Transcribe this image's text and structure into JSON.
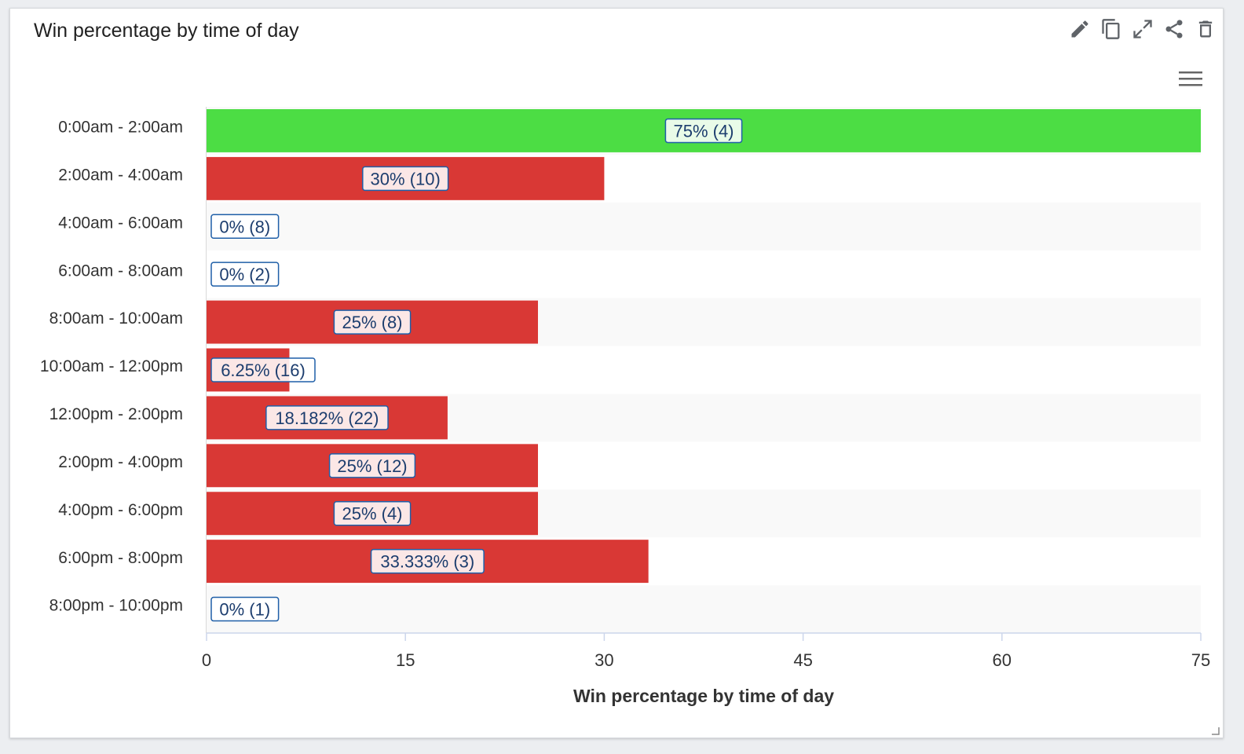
{
  "card": {
    "title": "Win percentage by time of day",
    "toolbar": [
      {
        "name": "edit-icon"
      },
      {
        "name": "copy-icon"
      },
      {
        "name": "expand-icon"
      },
      {
        "name": "share-icon"
      },
      {
        "name": "delete-icon"
      }
    ],
    "menu_icon": "hamburger-menu-icon"
  },
  "colors": {
    "win": "#4cdd44",
    "loss": "#d93835",
    "band": "#f9f9f9",
    "label_border": "#1f5fa8",
    "label_text": "#1c3d6e",
    "axis_text": "#333333"
  },
  "chart_data": {
    "type": "bar",
    "orientation": "horizontal",
    "categories": [
      "0:00am - 2:00am",
      "2:00am - 4:00am",
      "4:00am - 6:00am",
      "6:00am - 8:00am",
      "8:00am - 10:00am",
      "10:00am - 12:00pm",
      "12:00pm - 2:00pm",
      "2:00pm - 4:00pm",
      "4:00pm - 6:00pm",
      "6:00pm - 8:00pm",
      "8:00pm - 10:00pm"
    ],
    "values": [
      75,
      30,
      0,
      0,
      25,
      6.25,
      18.182,
      25,
      25,
      33.333,
      0
    ],
    "data_labels": [
      "75% (4)",
      "30% (10)",
      "0% (8)",
      "0% (2)",
      "25% (8)",
      "6.25% (16)",
      "18.182% (22)",
      "25% (12)",
      "25% (4)",
      "33.333% (3)",
      "0% (1)"
    ],
    "bar_colors": [
      "win",
      "loss",
      "loss",
      "loss",
      "loss",
      "loss",
      "loss",
      "loss",
      "loss",
      "loss",
      "loss"
    ],
    "x_ticks": [
      0,
      15,
      30,
      45,
      60,
      75
    ],
    "xlim": [
      0,
      75
    ],
    "xlabel": "Win percentage by time of day",
    "grid": false,
    "legend": "none"
  }
}
